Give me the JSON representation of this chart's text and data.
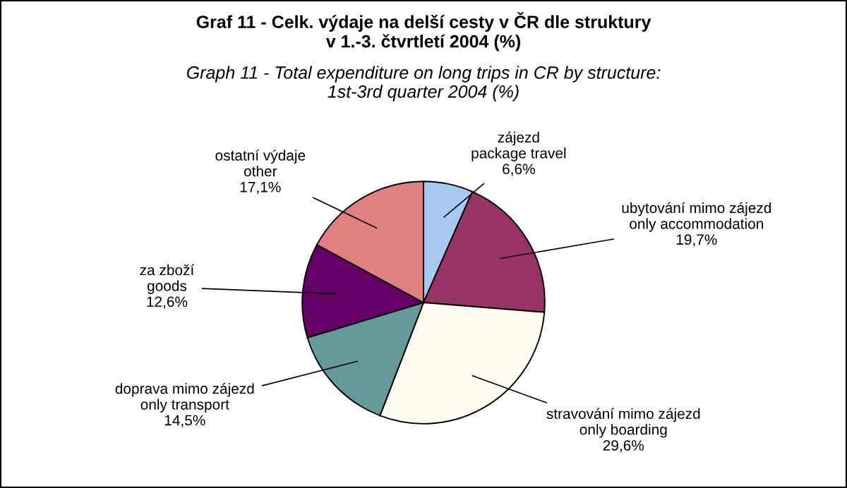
{
  "chart_data": {
    "type": "pie",
    "title": "Graf 11 - Celk. výdaje na delší cesty v ČR dle struktury\nv 1.-3. čtvrtletí 2004 (%)",
    "subtitle": "Graph 11 - Total expenditure on long trips in CR by structure:\n1st-3rd quarter 2004 (%)",
    "categories": [
      "zájezd\npackage travel",
      "ubytování mimo zájezd\nonly accommodation",
      "stravování mimo zájezd\nonly boarding",
      "doprava mimo zájezd\nonly transport",
      "za zboží\ngoods",
      "ostatní výdaje\nother"
    ],
    "values": [
      6.6,
      19.7,
      29.6,
      14.5,
      12.6,
      17.1
    ],
    "value_labels": [
      "6,6%",
      "19,7%",
      "29,6%",
      "14,5%",
      "12,6%",
      "17,1%"
    ],
    "colors": [
      "#a6caf0",
      "#993366",
      "#fffbf0",
      "#669999",
      "#660066",
      "#e08080"
    ]
  }
}
